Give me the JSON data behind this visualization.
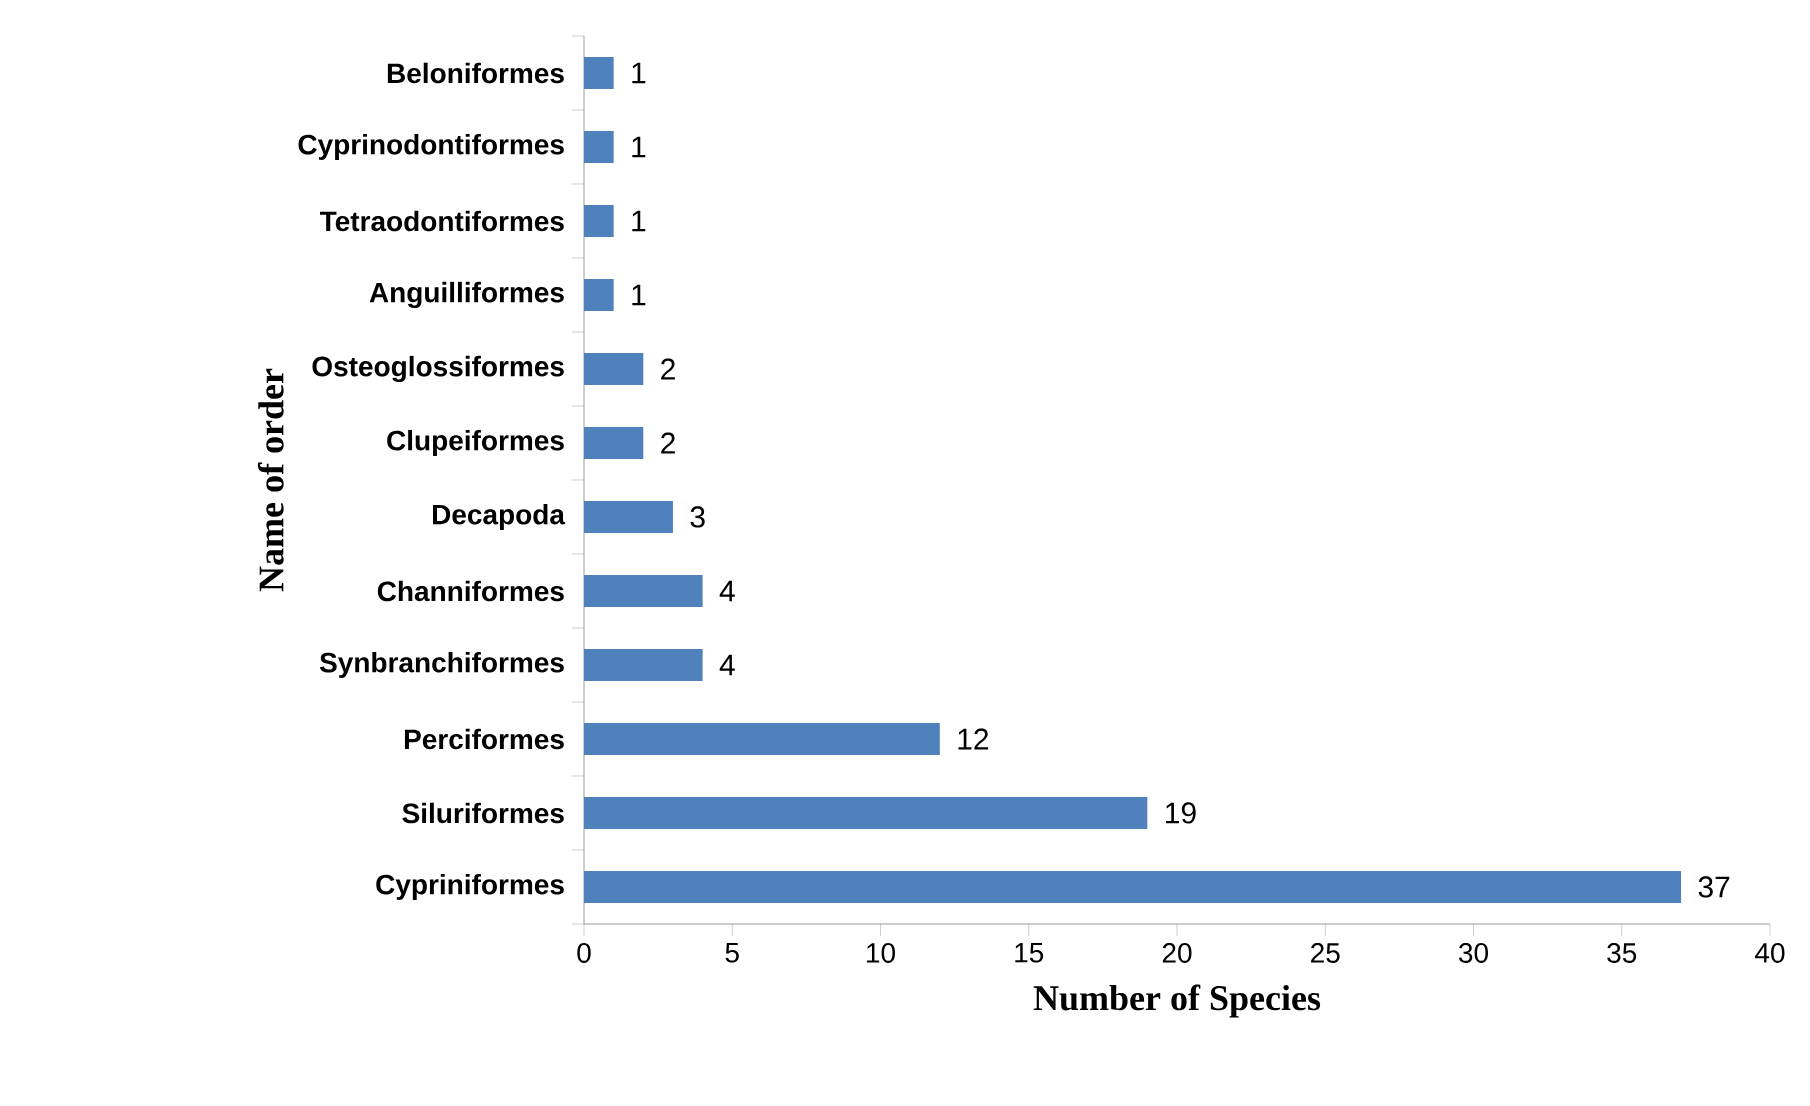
{
  "chart_data": {
    "type": "bar",
    "orientation": "horizontal",
    "categories": [
      "Beloniformes",
      "Cyprinodontiformes",
      "Tetraodontiformes",
      "Anguilliformes",
      "Osteoglossiformes",
      "Clupeiformes",
      "Decapoda",
      "Channiformes",
      "Synbranchiformes",
      "Perciformes",
      "Siluriformes",
      "Cypriniformes"
    ],
    "values": [
      1,
      1,
      1,
      1,
      2,
      2,
      3,
      4,
      4,
      12,
      19,
      37
    ],
    "color": "#4f81bd",
    "xlim": [
      0,
      40
    ],
    "xticks": [
      0,
      5,
      10,
      15,
      20,
      25,
      30,
      35,
      40
    ],
    "xlabel": "Number of Species",
    "ylabel": "Name of order",
    "data_labels": true
  }
}
